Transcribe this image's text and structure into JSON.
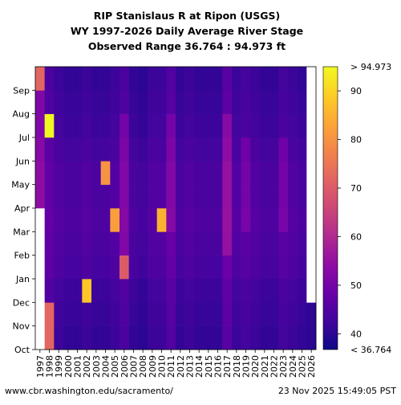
{
  "chart_data": {
    "type": "heatmap",
    "title": [
      "RIP Stanislaus R at Ripon (USGS)",
      "WY 1997-2026 Daily Average River Stage",
      "Observed Range 36.764 : 94.973 ft"
    ],
    "x_categories": [
      "1997",
      "1998",
      "1999",
      "2000",
      "2001",
      "2002",
      "2003",
      "2004",
      "2005",
      "2006",
      "2007",
      "2008",
      "2009",
      "2010",
      "2011",
      "2012",
      "2013",
      "2014",
      "2015",
      "2016",
      "2017",
      "2018",
      "2019",
      "2020",
      "2021",
      "2022",
      "2023",
      "2024",
      "2025",
      "2026"
    ],
    "y_month_labels": [
      "Oct",
      "Nov",
      "Dec",
      "Jan",
      "Feb",
      "Mar",
      "Apr",
      "May",
      "Jun",
      "Jul",
      "Aug",
      "Sep"
    ],
    "colorbar": {
      "min": 36.764,
      "max": 94.973,
      "ticks": [
        40,
        50,
        60,
        70,
        80,
        90
      ],
      "min_label": "< 36.764",
      "max_label": "> 94.973",
      "colormap": "plasma"
    },
    "year_baseline_values": [
      47,
      44,
      42,
      41,
      41,
      42,
      41,
      41,
      42,
      44,
      41,
      40,
      42,
      42,
      45,
      41,
      42,
      41,
      41,
      41,
      46,
      42,
      43,
      42,
      41,
      41,
      43,
      42,
      41,
      40
    ],
    "seasonal_profile_months": [
      "Oct",
      "Nov",
      "Dec",
      "Jan",
      "Feb",
      "Mar",
      "Apr",
      "May",
      "Jun",
      "Jul",
      "Aug",
      "Sep"
    ],
    "seasonal_profile_offsets": [
      0,
      0.5,
      1,
      2.5,
      3,
      3.5,
      3,
      3,
      2,
      1,
      0.5,
      0
    ],
    "wet_years": {
      "1997": {
        "months": [
          "Oct",
          "Nov",
          "Dec",
          "Jan",
          "Feb",
          "Mar",
          "Apr",
          "May",
          "Jun",
          "Jul",
          "Aug",
          "Sep"
        ],
        "added_stage": 4
      },
      "2006": {
        "months": [
          "Jan",
          "Feb",
          "Mar",
          "Apr",
          "May",
          "Jun",
          "Jul"
        ],
        "added_stage": 5
      },
      "2011": {
        "months": [
          "Mar",
          "Apr",
          "May",
          "Jun",
          "Jul"
        ],
        "added_stage": 4
      },
      "2017": {
        "months": [
          "Feb",
          "Mar",
          "Apr",
          "May",
          "Jun",
          "Jul"
        ],
        "added_stage": 6
      },
      "2019": {
        "months": [
          "Mar",
          "Apr",
          "May",
          "Jun"
        ],
        "added_stage": 4
      },
      "2023": {
        "months": [
          "Mar",
          "Apr",
          "May",
          "Jun"
        ],
        "added_stage": 4
      }
    },
    "notable_values": [
      {
        "year": "1998",
        "months": [
          "Oct",
          "Nov"
        ],
        "stage": 72
      },
      {
        "year": "1997",
        "months": [
          "Sep"
        ],
        "stage": 72
      },
      {
        "year": "1998",
        "months": [
          "Jul"
        ],
        "stage": 94.9
      },
      {
        "year": "2002",
        "months": [
          "Dec"
        ],
        "stage": 88
      },
      {
        "year": "2004",
        "months": [
          "May"
        ],
        "stage": 80
      },
      {
        "year": "2005",
        "months": [
          "Mar"
        ],
        "stage": 82
      },
      {
        "year": "2006",
        "months": [
          "Jan"
        ],
        "stage": 70
      },
      {
        "year": "2010",
        "months": [
          "Mar"
        ],
        "stage": 85
      }
    ],
    "no_data": [
      {
        "year": "1997",
        "months": [
          "Oct",
          "Nov",
          "Dec",
          "Jan",
          "Feb",
          "Mar"
        ]
      },
      {
        "year": "2026",
        "months": [
          "Dec",
          "Jan",
          "Feb",
          "Mar",
          "Apr",
          "May",
          "Jun",
          "Jul",
          "Aug",
          "Sep"
        ]
      }
    ]
  },
  "footer": {
    "source": "www.cbr.washington.edu/sacramento/",
    "timestamp": "23 Nov 2025 15:49:05 PST"
  }
}
